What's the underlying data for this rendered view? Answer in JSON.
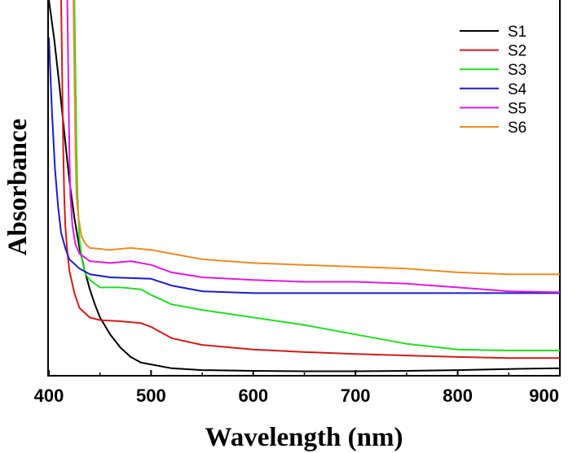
{
  "chart_data": {
    "type": "line",
    "title": "",
    "xlabel": "Wavelength (nm)",
    "ylabel": "Absorbance",
    "xlim": [
      400,
      900
    ],
    "ylim": [
      0,
      1
    ],
    "xticks": [
      "400",
      "500",
      "600",
      "700",
      "800",
      "900"
    ],
    "yticks": [],
    "grid": false,
    "legend_position": "top-right",
    "series": [
      {
        "name": "S1",
        "color": "#000000",
        "x": [
          400,
          405,
          410,
          415,
          420,
          425,
          430,
          435,
          440,
          445,
          450,
          460,
          470,
          480,
          490,
          500,
          520,
          550,
          600,
          650,
          700,
          750,
          800,
          850,
          900
        ],
        "y": [
          1.0,
          0.9,
          0.78,
          0.65,
          0.52,
          0.42,
          0.34,
          0.28,
          0.23,
          0.19,
          0.155,
          0.11,
          0.075,
          0.05,
          0.035,
          0.03,
          0.02,
          0.015,
          0.013,
          0.012,
          0.012,
          0.013,
          0.015,
          0.018,
          0.02
        ]
      },
      {
        "name": "S2",
        "color": "#d41a1a",
        "x": [
          412,
          413,
          414,
          415,
          416,
          418,
          420,
          425,
          430,
          440,
          450,
          470,
          490,
          500,
          520,
          550,
          600,
          650,
          700,
          750,
          800,
          850,
          900
        ],
        "y": [
          1.0,
          0.8,
          0.6,
          0.48,
          0.4,
          0.33,
          0.28,
          0.22,
          0.18,
          0.155,
          0.148,
          0.145,
          0.14,
          0.13,
          0.1,
          0.082,
          0.07,
          0.063,
          0.058,
          0.054,
          0.05,
          0.047,
          0.047
        ]
      },
      {
        "name": "S3",
        "color": "#22dd22",
        "x": [
          425,
          426,
          427,
          428,
          430,
          433,
          436,
          440,
          450,
          470,
          490,
          500,
          520,
          550,
          600,
          650,
          700,
          750,
          800,
          850,
          900
        ],
        "y": [
          1.0,
          0.8,
          0.6,
          0.48,
          0.36,
          0.3,
          0.27,
          0.255,
          0.235,
          0.235,
          0.23,
          0.215,
          0.19,
          0.175,
          0.155,
          0.135,
          0.11,
          0.085,
          0.07,
          0.067,
          0.067
        ]
      },
      {
        "name": "S4",
        "color": "#1c1cc8",
        "x": [
          400,
          403,
          406,
          409,
          412,
          416,
          420,
          430,
          440,
          460,
          480,
          500,
          520,
          550,
          600,
          650,
          700,
          750,
          800,
          850,
          900
        ],
        "y": [
          0.9,
          0.7,
          0.55,
          0.45,
          0.38,
          0.34,
          0.31,
          0.285,
          0.27,
          0.262,
          0.26,
          0.258,
          0.24,
          0.225,
          0.22,
          0.22,
          0.22,
          0.22,
          0.22,
          0.22,
          0.22
        ]
      },
      {
        "name": "S5",
        "color": "#e018e0",
        "x": [
          418,
          419,
          420,
          421,
          423,
          426,
          430,
          440,
          460,
          480,
          500,
          520,
          550,
          600,
          650,
          700,
          750,
          800,
          850,
          900
        ],
        "y": [
          1.0,
          0.8,
          0.6,
          0.48,
          0.4,
          0.35,
          0.325,
          0.305,
          0.3,
          0.305,
          0.295,
          0.275,
          0.262,
          0.255,
          0.25,
          0.25,
          0.245,
          0.235,
          0.225,
          0.222
        ]
      },
      {
        "name": "S6",
        "color": "#ee8a22",
        "x": [
          424,
          425,
          426,
          427,
          429,
          432,
          436,
          440,
          460,
          480,
          500,
          520,
          550,
          600,
          650,
          700,
          750,
          800,
          850,
          900
        ],
        "y": [
          1.0,
          0.8,
          0.6,
          0.48,
          0.42,
          0.37,
          0.35,
          0.34,
          0.335,
          0.34,
          0.335,
          0.325,
          0.31,
          0.3,
          0.295,
          0.29,
          0.285,
          0.275,
          0.27,
          0.27
        ]
      }
    ]
  }
}
